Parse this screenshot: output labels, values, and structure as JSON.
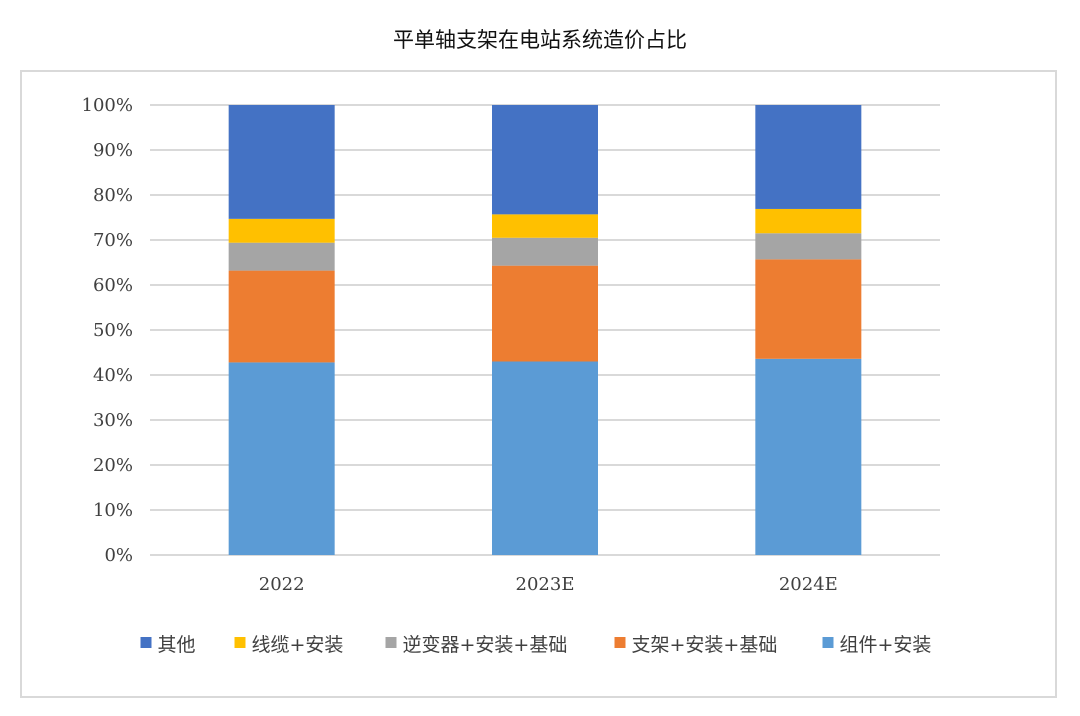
{
  "chart_data": {
    "type": "bar",
    "stacked": true,
    "title": "平单轴支架在电站系统造价占比",
    "xlabel": "",
    "ylabel": "",
    "categories": [
      "2022",
      "2023E",
      "2024E"
    ],
    "ylim": [
      0,
      100
    ],
    "yticks": [
      "0%",
      "10%",
      "20%",
      "30%",
      "40%",
      "50%",
      "60%",
      "70%",
      "80%",
      "90%",
      "100%"
    ],
    "grid": true,
    "legend_position": "bottom",
    "series": [
      {
        "name": "组件+安装",
        "color": "#5b9bd5",
        "values": [
          42.8,
          43.0,
          43.6
        ]
      },
      {
        "name": "支架+安装+基础",
        "color": "#ed7d31",
        "values": [
          20.4,
          21.3,
          22.1
        ]
      },
      {
        "name": "逆变器+安装+基础",
        "color": "#a5a5a5",
        "values": [
          6.2,
          6.2,
          5.8
        ]
      },
      {
        "name": "线缆+安装",
        "color": "#ffc000",
        "values": [
          5.3,
          5.2,
          5.4
        ]
      },
      {
        "name": "其他",
        "color": "#4472c4",
        "values": [
          25.3,
          24.3,
          23.1
        ]
      }
    ],
    "legend_order": [
      4,
      3,
      2,
      1,
      0
    ]
  }
}
